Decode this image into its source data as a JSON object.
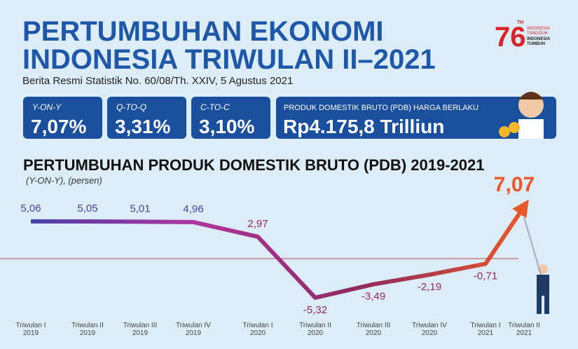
{
  "header": {
    "title_lines": [
      "PERTUMBUHAN EKONOMI",
      "INDONESIA TRIWULAN II–2021"
    ],
    "subtitle": "Berita Resmi Statistik No. 60/08/Th. XXIV, 5 Agustus 2021"
  },
  "logo": {
    "number": "76",
    "suffix": "TH",
    "lines": [
      "INDONESIA",
      "TANGGUH",
      "INDONESIA",
      "TUMBUH"
    ]
  },
  "stats": [
    {
      "label": "Y-ON-Y",
      "value": "7,07%"
    },
    {
      "label": "Q-TO-Q",
      "value": "3,31%"
    },
    {
      "label": "C-TO-C",
      "value": "3,10%"
    }
  ],
  "gdp": {
    "label": "PRODUK DOMESTIK BRUTO (PDB) HARGA BERLAKU",
    "value": "Rp4.175,8 Trilliun"
  },
  "chart_data": {
    "type": "line",
    "title": "PERTUMBUHAN PRODUK DOMESTIK BRUTO (PDB) 2019-2021",
    "subtitle": "(Y-ON-Y), (persen)",
    "categories": [
      [
        "Triwulan I",
        "2019"
      ],
      [
        "Triwulan II",
        "2019"
      ],
      [
        "Triwulan III",
        "2019"
      ],
      [
        "Triwulan IV",
        "2019"
      ],
      [
        "Triwulan I",
        "2020"
      ],
      [
        "Triwulan II",
        "2020"
      ],
      [
        "Triwulan III",
        "2020"
      ],
      [
        "Triwulan IV",
        "2020"
      ],
      [
        "Triwulan I",
        "2021"
      ],
      [
        "Triwulan II",
        "2021"
      ]
    ],
    "values": [
      5.06,
      5.05,
      5.01,
      4.96,
      2.97,
      -5.32,
      -3.49,
      -2.19,
      -0.71,
      7.07
    ],
    "value_labels": [
      "5,06",
      "5,05",
      "5,01",
      "4,96",
      "2,97",
      "-5,32",
      "-3,49",
      "-2,19",
      "-0,71",
      "7,07"
    ],
    "colors": [
      "#4a3fa6",
      "#b0349e",
      "#8e2a60",
      "#e8582a"
    ]
  }
}
